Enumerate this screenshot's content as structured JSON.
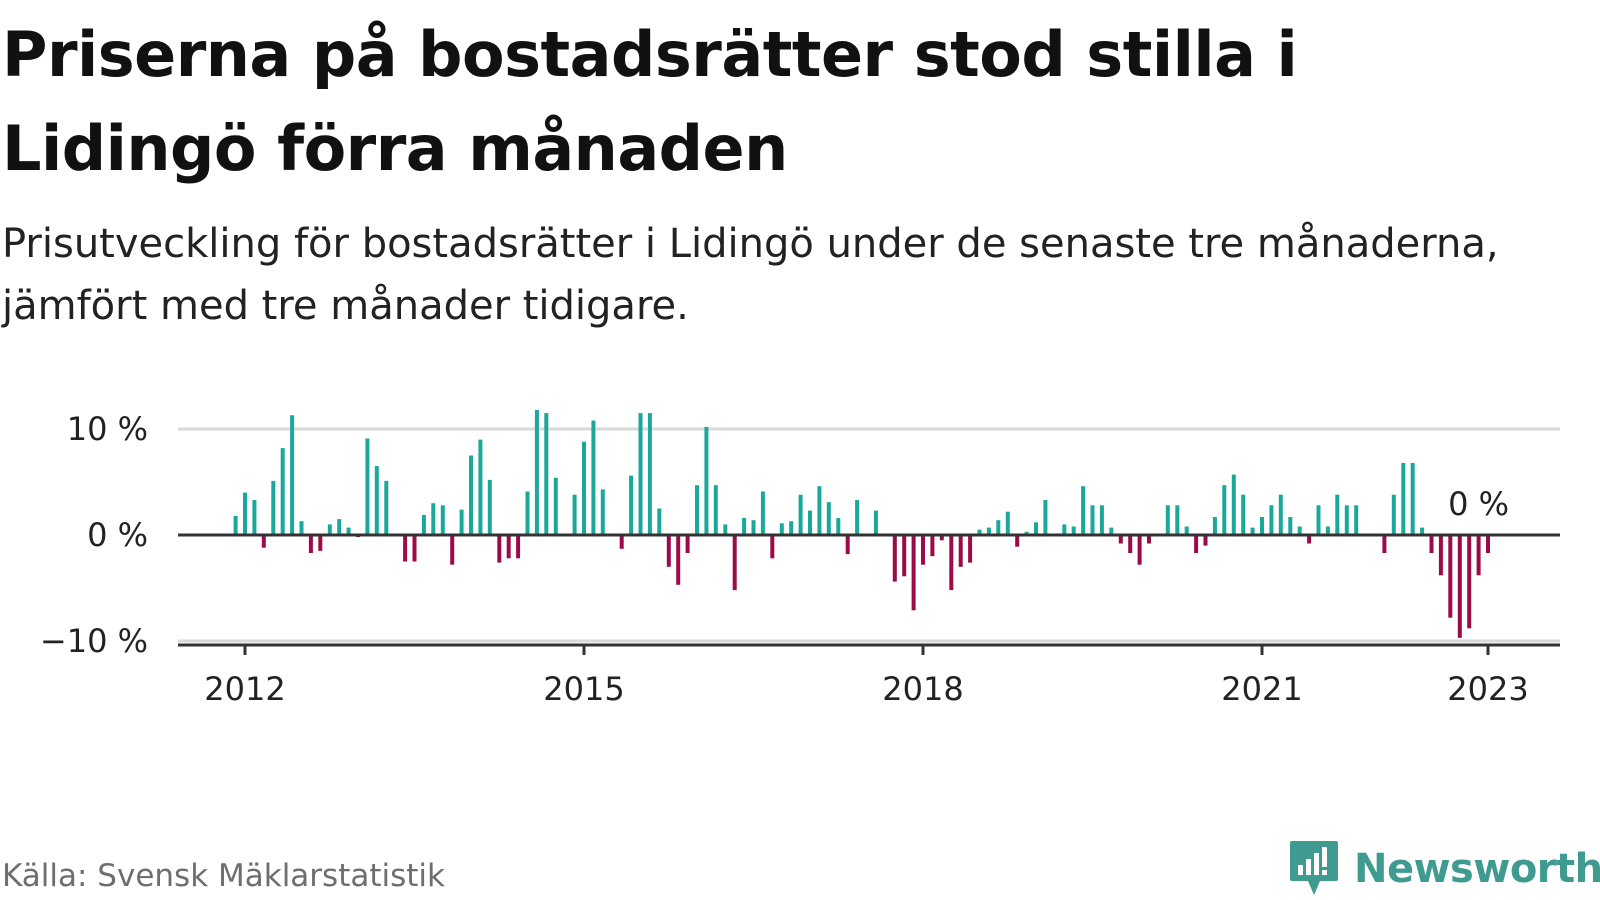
{
  "header": {
    "title": "Priserna på bostadsrätter stod stilla i Lidingö förra månaden",
    "subtitle": "Prisutveckling för bostadsrätter i Lidingö under de senaste tre månaderna, jämfört med tre månader tidigare."
  },
  "footer": {
    "source": "Källa: Svensk Mäklarstatistik",
    "brand": "Newsworthy"
  },
  "colors": {
    "positive": "#1aa89b",
    "negative": "#9c0a4a",
    "gridline": "#d9d9d9",
    "zeroline": "#333333",
    "brand": "#3f9a8f"
  },
  "icons": {
    "brand_logo": "bar-chart-speech-bubble-icon"
  },
  "chart_data": {
    "type": "bar",
    "unit": "%",
    "y_ticks": [
      {
        "value": 10,
        "label": "10 %"
      },
      {
        "value": 0,
        "label": "0 %"
      },
      {
        "value": -10,
        "label": "−10 %"
      }
    ],
    "x_ticks": [
      {
        "value": "2012-01",
        "label": "2012"
      },
      {
        "value": "2015-01",
        "label": "2015"
      },
      {
        "value": "2018-01",
        "label": "2018"
      },
      {
        "value": "2021-01",
        "label": "2021"
      },
      {
        "value": "2023-01",
        "label": "2023"
      }
    ],
    "ylim": [
      -11,
      12
    ],
    "grid": true,
    "annotation": {
      "text": "0 %",
      "x": "2022-12",
      "y": 0
    },
    "start": "2011-12",
    "values": [
      1.8,
      4.0,
      3.3,
      -1.2,
      5.1,
      8.2,
      11.3,
      1.3,
      -1.7,
      -1.5,
      1.0,
      1.5,
      0.7,
      -0.2,
      9.1,
      6.5,
      5.1,
      0,
      -2.5,
      -2.5,
      1.9,
      3.0,
      2.8,
      -2.8,
      2.4,
      7.5,
      9.0,
      5.2,
      -2.6,
      -2.2,
      -2.2,
      4.1,
      11.8,
      11.5,
      5.4,
      0,
      3.8,
      8.8,
      10.8,
      4.3,
      0,
      -1.3,
      5.6,
      11.5,
      11.5,
      2.5,
      -3.0,
      -4.7,
      -1.7,
      4.7,
      10.2,
      4.7,
      1.0,
      -5.2,
      1.6,
      1.4,
      4.1,
      -2.2,
      1.1,
      1.3,
      3.8,
      2.3,
      4.6,
      3.1,
      1.6,
      -1.8,
      3.3,
      0,
      2.3,
      0,
      -4.4,
      -3.9,
      -7.1,
      -2.8,
      -2.0,
      -0.5,
      -5.2,
      -3.0,
      -2.6,
      0.5,
      0.7,
      1.4,
      2.2,
      -1.1,
      0.3,
      1.2,
      3.3,
      0,
      1.0,
      0.8,
      4.6,
      2.8,
      2.8,
      0.7,
      -0.8,
      -1.7,
      -2.8,
      -0.8,
      0,
      2.8,
      2.8,
      0.8,
      -1.7,
      -1.0,
      1.7,
      4.7,
      5.7,
      3.8,
      0.7,
      1.7,
      2.8,
      3.8,
      1.7,
      0.8,
      -0.8,
      2.8,
      0.8,
      3.8,
      2.8,
      2.8,
      0,
      0,
      -1.7,
      3.8,
      6.8,
      6.8,
      0.7,
      -1.7,
      -3.8,
      -7.8,
      -9.7,
      -8.8,
      -3.8,
      -1.7
    ]
  }
}
